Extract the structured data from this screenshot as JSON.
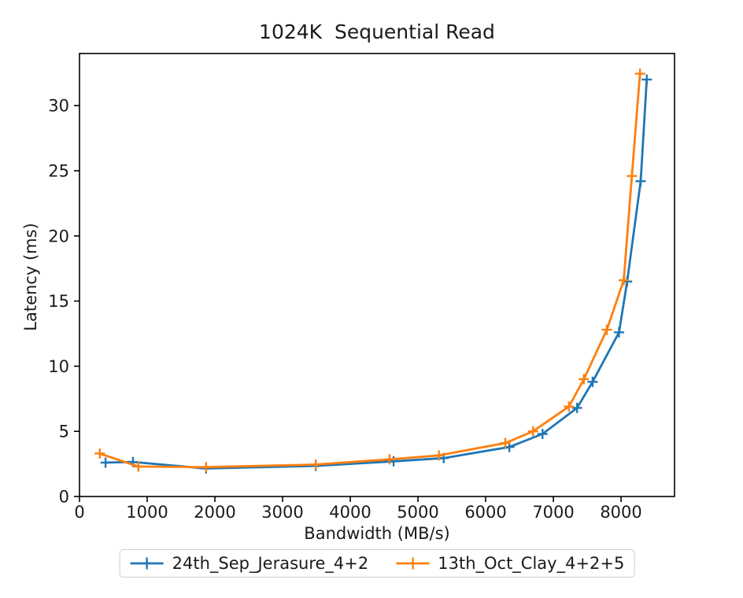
{
  "chart_data": {
    "type": "line",
    "title": "1024K  Sequential Read",
    "xlabel": "Bandwidth (MB/s)",
    "ylabel": "Latency (ms)",
    "xlim": [
      0,
      8790
    ],
    "ylim": [
      0,
      34
    ],
    "xticks": [
      0,
      1000,
      2000,
      3000,
      4000,
      5000,
      6000,
      7000,
      8000
    ],
    "yticks": [
      0,
      5,
      10,
      15,
      20,
      25,
      30
    ],
    "grid": false,
    "marker": "plus",
    "legend_position": "below-center-outside",
    "series": [
      {
        "name": "24th_Sep_Jerasure_4+2",
        "color": "#1f77b4",
        "points": [
          [
            385,
            2.6
          ],
          [
            790,
            2.65
          ],
          [
            1870,
            2.15
          ],
          [
            3490,
            2.35
          ],
          [
            4640,
            2.7
          ],
          [
            5380,
            2.95
          ],
          [
            6350,
            3.8
          ],
          [
            6840,
            4.8
          ],
          [
            7350,
            6.8
          ],
          [
            7580,
            8.8
          ],
          [
            7970,
            12.6
          ],
          [
            8090,
            16.5
          ],
          [
            8290,
            24.2
          ],
          [
            8380,
            32.0
          ]
        ]
      },
      {
        "name": "13th_Oct_Clay_4+2+5",
        "color": "#ff7f0e",
        "points": [
          [
            300,
            3.3
          ],
          [
            870,
            2.3
          ],
          [
            1870,
            2.25
          ],
          [
            3490,
            2.45
          ],
          [
            4580,
            2.85
          ],
          [
            5310,
            3.15
          ],
          [
            6290,
            4.1
          ],
          [
            6700,
            5.0
          ],
          [
            7230,
            6.9
          ],
          [
            7450,
            9.0
          ],
          [
            7790,
            12.8
          ],
          [
            8040,
            16.6
          ],
          [
            8160,
            24.6
          ],
          [
            8280,
            32.45
          ]
        ]
      }
    ]
  }
}
